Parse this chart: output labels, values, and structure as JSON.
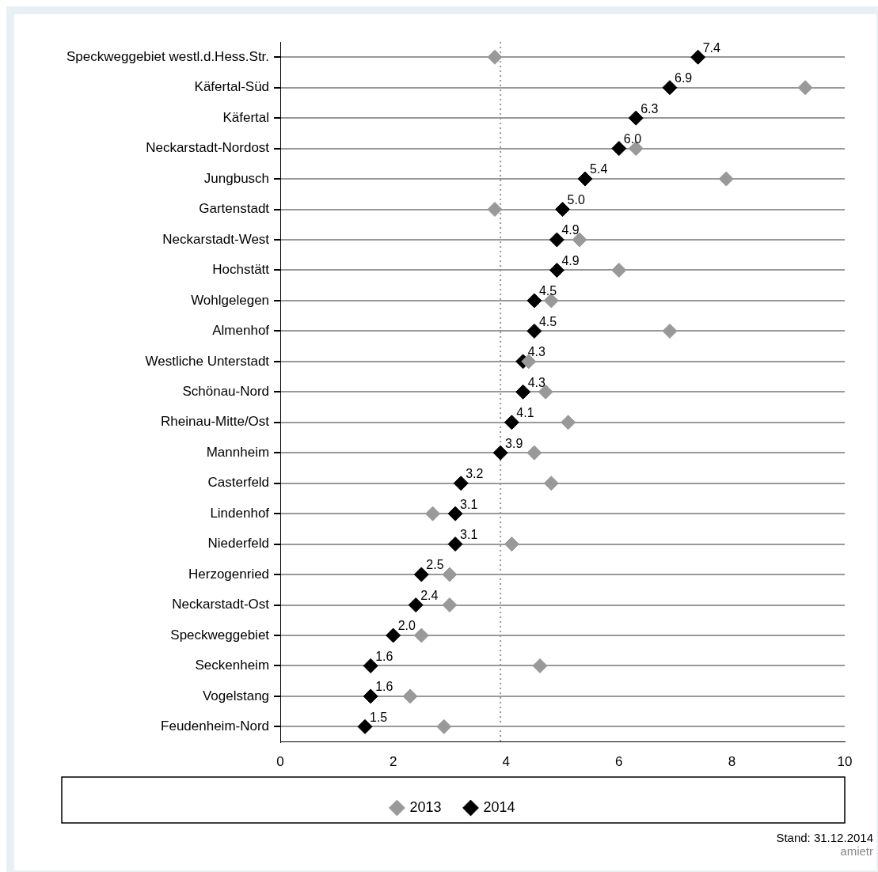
{
  "chart_data": {
    "type": "scatter",
    "orientation": "horizontal",
    "categories": [
      "Speckweggebiet westl.d.Hess.Str.",
      "Käfertal-Süd",
      "Käfertal",
      "Neckarstadt-Nordost",
      "Jungbusch",
      "Gartenstadt",
      "Neckarstadt-West",
      "Hochstätt",
      "Wohlgelegen",
      "Almenhof",
      "Westliche Unterstadt",
      "Schönau-Nord",
      "Rheinau-Mitte/Ost",
      "Mannheim",
      "Casterfeld",
      "Lindenhof",
      "Niederfeld",
      "Herzogenried",
      "Neckarstadt-Ost",
      "Speckweggebiet",
      "Seckenheim",
      "Vogelstang",
      "Feudenheim-Nord"
    ],
    "series": [
      {
        "name": "2013",
        "color": "#999999",
        "values": [
          3.8,
          9.3,
          null,
          6.3,
          7.9,
          3.8,
          5.3,
          6.0,
          4.8,
          6.9,
          4.4,
          4.7,
          5.1,
          4.5,
          4.8,
          2.7,
          4.1,
          3.0,
          3.0,
          2.5,
          4.6,
          2.3,
          2.9
        ]
      },
      {
        "name": "2014",
        "color": "#000000",
        "values": [
          7.4,
          6.9,
          6.3,
          6.0,
          5.4,
          5.0,
          4.9,
          4.9,
          4.5,
          4.5,
          4.3,
          4.3,
          4.1,
          3.9,
          3.2,
          3.1,
          3.1,
          2.5,
          2.4,
          2.0,
          1.6,
          1.6,
          1.5
        ],
        "value_labels": [
          "7.4",
          "6.9",
          "6.3",
          "6.0",
          "5.4",
          "5.0",
          "4.9",
          "4.9",
          "4.5",
          "4.5",
          "4.3",
          "4.3",
          "4.1",
          "3.9",
          "3.2",
          "3.1",
          "3.1",
          "2.5",
          "2.4",
          "2.0",
          "1.6",
          "1.6",
          "1.5"
        ]
      }
    ],
    "xlim": [
      0,
      10
    ],
    "xticks": [
      0,
      2,
      4,
      6,
      8,
      10
    ],
    "ref_lines": [
      {
        "axis": "x",
        "value": 3.9,
        "color": "#999999",
        "line_style": "dotted"
      }
    ],
    "grid": "y",
    "legend": "bottom",
    "marker": "diamond",
    "annotations": [
      "Stand: 31.12.2014",
      "amietr"
    ]
  }
}
